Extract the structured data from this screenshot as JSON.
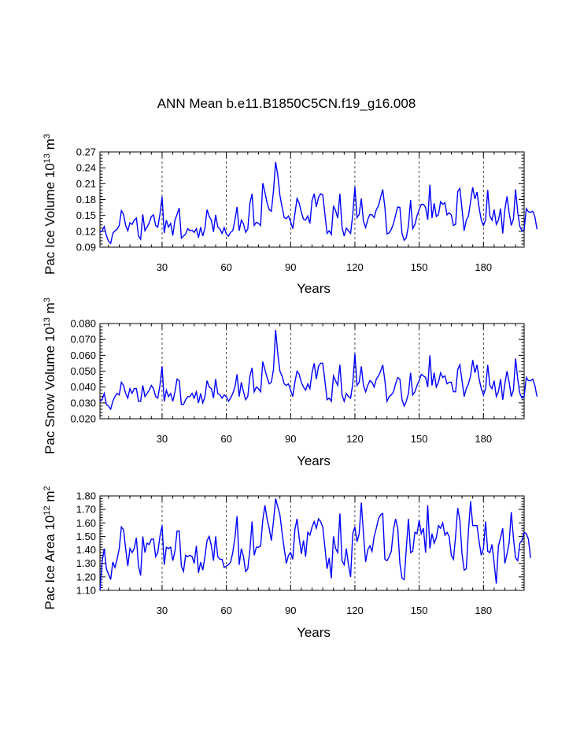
{
  "figure": {
    "title": "ANN Mean b.e11.B1850C5CN.f19_g16.008"
  },
  "chart_data": [
    {
      "type": "line",
      "title": "",
      "xlabel": "Years",
      "ylabel": "Pac Ice Volume 10",
      "ylabel_exp": "13",
      "ylabel_unit": " m",
      "ylabel_unit_exp": "3",
      "xlim": [
        1,
        199
      ],
      "ylim": [
        0.09,
        0.27
      ],
      "xticks": [
        30,
        60,
        90,
        120,
        150,
        180
      ],
      "xtick_labels": [
        "30",
        "60",
        "90",
        "120",
        "150",
        "180"
      ],
      "yticks": [
        0.09,
        0.12,
        0.15,
        0.18,
        0.21,
        0.24,
        0.27
      ],
      "ytick_labels": [
        "0.09",
        "0.12",
        "0.15",
        "0.18",
        "0.21",
        "0.24",
        "0.27"
      ],
      "grid_x": [
        30,
        60,
        90,
        120,
        150,
        180
      ],
      "series": [
        {
          "name": "Pac Ice Volume",
          "color": "#0000ff",
          "values": [
            0.118,
            0.121,
            0.129,
            0.112,
            0.101,
            0.097,
            0.116,
            0.121,
            0.124,
            0.131,
            0.159,
            0.152,
            0.131,
            0.121,
            0.136,
            0.133,
            0.141,
            0.145,
            0.111,
            0.105,
            0.152,
            0.121,
            0.128,
            0.136,
            0.148,
            0.151,
            0.131,
            0.128,
            0.152,
            0.185,
            0.117,
            0.141,
            0.128,
            0.135,
            0.112,
            0.141,
            0.152,
            0.164,
            0.107,
            0.111,
            0.115,
            0.125,
            0.121,
            0.122,
            0.118,
            0.125,
            0.108,
            0.128,
            0.111,
            0.126,
            0.161,
            0.148,
            0.141,
            0.119,
            0.151,
            0.128,
            0.124,
            0.116,
            0.127,
            0.115,
            0.111,
            0.118,
            0.121,
            0.141,
            0.166,
            0.121,
            0.141,
            0.134,
            0.118,
            0.124,
            0.173,
            0.191,
            0.131,
            0.137,
            0.135,
            0.131,
            0.211,
            0.194,
            0.174,
            0.161,
            0.158,
            0.196,
            0.251,
            0.226,
            0.188,
            0.166,
            0.146,
            0.144,
            0.149,
            0.138,
            0.125,
            0.153,
            0.182,
            0.173,
            0.156,
            0.143,
            0.141,
            0.149,
            0.135,
            0.178,
            0.191,
            0.166,
            0.184,
            0.191,
            0.189,
            0.153,
            0.116,
            0.121,
            0.114,
            0.168,
            0.159,
            0.145,
            0.191,
            0.128,
            0.111,
            0.126,
            0.121,
            0.116,
            0.151,
            0.204,
            0.146,
            0.152,
            0.182,
            0.139,
            0.127,
            0.142,
            0.152,
            0.151,
            0.146,
            0.161,
            0.168,
            0.184,
            0.199,
            0.165,
            0.115,
            0.117,
            0.124,
            0.134,
            0.151,
            0.166,
            0.165,
            0.116,
            0.103,
            0.108,
            0.131,
            0.179,
            0.125,
            0.133,
            0.149,
            0.161,
            0.171,
            0.171,
            0.165,
            0.142,
            0.208,
            0.145,
            0.173,
            0.148,
            0.151,
            0.176,
            0.171,
            0.174,
            0.151,
            0.155,
            0.151,
            0.131,
            0.133,
            0.195,
            0.201,
            0.162,
            0.121,
            0.141,
            0.149,
            0.176,
            0.203,
            0.181,
            0.194,
            0.164,
            0.141,
            0.131,
            0.141,
            0.198,
            0.149,
            0.141,
            0.161,
            0.133,
            0.141,
            0.163,
            0.116,
            0.161,
            0.186,
            0.155,
            0.131,
            0.143,
            0.199,
            0.156,
            0.129,
            0.121,
            0.123,
            0.163,
            0.157,
            0.156,
            0.158,
            0.148,
            0.124
          ],
          "x_start": 1
        }
      ]
    },
    {
      "type": "line",
      "title": "",
      "xlabel": "Years",
      "ylabel": "Pac Snow Volume 10",
      "ylabel_exp": "13",
      "ylabel_unit": " m",
      "ylabel_unit_exp": "3",
      "xlim": [
        1,
        199
      ],
      "ylim": [
        0.02,
        0.08
      ],
      "xticks": [
        30,
        60,
        90,
        120,
        150,
        180
      ],
      "xtick_labels": [
        "30",
        "60",
        "90",
        "120",
        "150",
        "180"
      ],
      "yticks": [
        0.02,
        0.03,
        0.04,
        0.05,
        0.06,
        0.07,
        0.08
      ],
      "ytick_labels": [
        "0.020",
        "0.030",
        "0.040",
        "0.050",
        "0.060",
        "0.070",
        "0.080"
      ],
      "grid_x": [
        30,
        60,
        90,
        120,
        150,
        180
      ],
      "series": [
        {
          "name": "Pac Snow Volume",
          "color": "#0000ff",
          "values": [
            0.031,
            0.032,
            0.036,
            0.029,
            0.028,
            0.026,
            0.031,
            0.034,
            0.036,
            0.035,
            0.043,
            0.041,
            0.036,
            0.033,
            0.039,
            0.036,
            0.039,
            0.039,
            0.031,
            0.031,
            0.041,
            0.034,
            0.036,
            0.038,
            0.041,
            0.039,
            0.034,
            0.033,
            0.041,
            0.053,
            0.031,
            0.038,
            0.034,
            0.036,
            0.031,
            0.037,
            0.045,
            0.044,
            0.029,
            0.029,
            0.032,
            0.034,
            0.034,
            0.036,
            0.033,
            0.037,
            0.03,
            0.036,
            0.03,
            0.034,
            0.044,
            0.04,
            0.039,
            0.033,
            0.045,
            0.036,
            0.035,
            0.033,
            0.035,
            0.034,
            0.031,
            0.033,
            0.036,
            0.04,
            0.048,
            0.034,
            0.043,
            0.037,
            0.032,
            0.034,
            0.047,
            0.052,
            0.037,
            0.04,
            0.039,
            0.037,
            0.056,
            0.051,
            0.046,
            0.042,
            0.043,
            0.051,
            0.076,
            0.061,
            0.05,
            0.047,
            0.042,
            0.041,
            0.042,
            0.038,
            0.034,
            0.043,
            0.05,
            0.048,
            0.043,
            0.04,
            0.038,
            0.042,
            0.039,
            0.049,
            0.055,
            0.045,
            0.053,
            0.055,
            0.055,
            0.044,
            0.032,
            0.033,
            0.031,
            0.047,
            0.044,
            0.041,
            0.054,
            0.035,
            0.031,
            0.036,
            0.034,
            0.033,
            0.042,
            0.061,
            0.041,
            0.043,
            0.053,
            0.041,
            0.037,
            0.041,
            0.044,
            0.043,
            0.04,
            0.045,
            0.047,
            0.05,
            0.054,
            0.044,
            0.031,
            0.034,
            0.035,
            0.037,
            0.042,
            0.046,
            0.045,
            0.032,
            0.028,
            0.031,
            0.036,
            0.049,
            0.035,
            0.037,
            0.041,
            0.044,
            0.048,
            0.047,
            0.046,
            0.04,
            0.06,
            0.041,
            0.049,
            0.04,
            0.043,
            0.049,
            0.046,
            0.047,
            0.042,
            0.043,
            0.043,
            0.037,
            0.037,
            0.051,
            0.054,
            0.044,
            0.034,
            0.039,
            0.042,
            0.047,
            0.057,
            0.049,
            0.054,
            0.045,
            0.039,
            0.035,
            0.039,
            0.054,
            0.041,
            0.039,
            0.044,
            0.034,
            0.037,
            0.045,
            0.032,
            0.042,
            0.05,
            0.043,
            0.034,
            0.038,
            0.058,
            0.045,
            0.036,
            0.033,
            0.034,
            0.046,
            0.044,
            0.044,
            0.045,
            0.041,
            0.034
          ],
          "x_start": 1
        }
      ]
    },
    {
      "type": "line",
      "title": "",
      "xlabel": "Years",
      "ylabel": "Pac Ice Area 10",
      "ylabel_exp": "12",
      "ylabel_unit": " m",
      "ylabel_unit_exp": "2",
      "xlim": [
        1,
        199
      ],
      "ylim": [
        1.1,
        1.8
      ],
      "xticks": [
        30,
        60,
        90,
        120,
        150,
        180
      ],
      "xtick_labels": [
        "30",
        "60",
        "90",
        "120",
        "150",
        "180"
      ],
      "yticks": [
        1.1,
        1.2,
        1.3,
        1.4,
        1.5,
        1.6,
        1.7,
        1.8
      ],
      "ytick_labels": [
        "1.10",
        "1.20",
        "1.30",
        "1.40",
        "1.50",
        "1.60",
        "1.70",
        "1.80"
      ],
      "grid_x": [
        30,
        60,
        90,
        120,
        150,
        180
      ],
      "series": [
        {
          "name": "Pac Ice Area",
          "color": "#0000ff",
          "values": [
            1.1,
            1.31,
            1.41,
            1.26,
            1.22,
            1.18,
            1.31,
            1.27,
            1.33,
            1.41,
            1.57,
            1.55,
            1.41,
            1.28,
            1.41,
            1.38,
            1.41,
            1.49,
            1.28,
            1.21,
            1.5,
            1.38,
            1.45,
            1.44,
            1.48,
            1.48,
            1.35,
            1.38,
            1.5,
            1.58,
            1.29,
            1.42,
            1.41,
            1.42,
            1.32,
            1.39,
            1.54,
            1.54,
            1.28,
            1.24,
            1.36,
            1.35,
            1.36,
            1.35,
            1.3,
            1.43,
            1.23,
            1.31,
            1.25,
            1.35,
            1.47,
            1.5,
            1.43,
            1.32,
            1.5,
            1.35,
            1.33,
            1.33,
            1.27,
            1.28,
            1.29,
            1.31,
            1.38,
            1.49,
            1.65,
            1.29,
            1.41,
            1.35,
            1.24,
            1.26,
            1.4,
            1.61,
            1.36,
            1.42,
            1.42,
            1.43,
            1.62,
            1.73,
            1.63,
            1.56,
            1.47,
            1.61,
            1.78,
            1.72,
            1.66,
            1.53,
            1.41,
            1.3,
            1.36,
            1.38,
            1.33,
            1.55,
            1.63,
            1.49,
            1.37,
            1.47,
            1.35,
            1.53,
            1.51,
            1.57,
            1.61,
            1.56,
            1.63,
            1.61,
            1.57,
            1.42,
            1.26,
            1.34,
            1.19,
            1.5,
            1.41,
            1.38,
            1.67,
            1.32,
            1.29,
            1.41,
            1.29,
            1.2,
            1.52,
            1.57,
            1.46,
            1.52,
            1.75,
            1.52,
            1.31,
            1.4,
            1.43,
            1.39,
            1.5,
            1.56,
            1.63,
            1.66,
            1.67,
            1.33,
            1.32,
            1.35,
            1.39,
            1.55,
            1.63,
            1.56,
            1.3,
            1.19,
            1.18,
            1.41,
            1.63,
            1.38,
            1.39,
            1.53,
            1.52,
            1.62,
            1.52,
            1.56,
            1.38,
            1.73,
            1.41,
            1.52,
            1.45,
            1.49,
            1.58,
            1.56,
            1.6,
            1.51,
            1.53,
            1.5,
            1.36,
            1.33,
            1.5,
            1.71,
            1.62,
            1.37,
            1.25,
            1.26,
            1.54,
            1.76,
            1.58,
            1.58,
            1.58,
            1.46,
            1.36,
            1.41,
            1.61,
            1.39,
            1.38,
            1.44,
            1.3,
            1.15,
            1.43,
            1.49,
            1.56,
            1.3,
            1.37,
            1.45,
            1.68,
            1.49,
            1.34,
            1.32,
            1.45,
            1.47,
            1.53,
            1.52,
            1.48,
            1.34
          ],
          "x_start": 1
        }
      ]
    }
  ]
}
